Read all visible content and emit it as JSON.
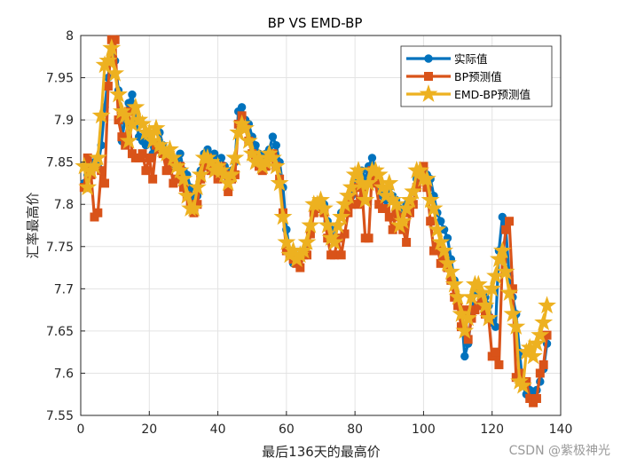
{
  "chart_data": {
    "type": "line",
    "title": "BP VS EMD-BP",
    "xlabel": "最后136天的最高价",
    "ylabel": "汇率最高价",
    "xlim": [
      0,
      140
    ],
    "ylim": [
      7.55,
      8.0
    ],
    "xticks": [
      0,
      20,
      40,
      60,
      80,
      100,
      120,
      140
    ],
    "yticks": [
      7.55,
      7.6,
      7.65,
      7.7,
      7.75,
      7.8,
      7.85,
      7.9,
      7.95,
      8.0
    ],
    "ytick_labels": [
      "7.55",
      "7.6",
      "7.65",
      "7.7",
      "7.75",
      "7.8",
      "7.85",
      "7.9",
      "7.95",
      "8"
    ],
    "grid": true,
    "legend_position": "top-right",
    "series": [
      {
        "name": "实际值",
        "color": "#0072BD",
        "marker": "circle",
        "values": [
          7.825,
          7.835,
          7.845,
          7.85,
          7.845,
          7.87,
          7.915,
          7.95,
          7.985,
          7.97,
          7.935,
          7.875,
          7.905,
          7.92,
          7.93,
          7.9,
          7.88,
          7.875,
          7.87,
          7.88,
          7.86,
          7.865,
          7.885,
          7.87,
          7.855,
          7.86,
          7.845,
          7.85,
          7.86,
          7.84,
          7.835,
          7.82,
          7.8,
          7.81,
          7.84,
          7.86,
          7.865,
          7.855,
          7.86,
          7.85,
          7.855,
          7.845,
          7.83,
          7.84,
          7.85,
          7.91,
          7.915,
          7.9,
          7.895,
          7.88,
          7.87,
          7.86,
          7.855,
          7.86,
          7.865,
          7.88,
          7.87,
          7.85,
          7.82,
          7.77,
          7.745,
          7.73,
          7.735,
          7.74,
          7.745,
          7.75,
          7.77,
          7.795,
          7.8,
          7.805,
          7.8,
          7.78,
          7.77,
          7.76,
          7.775,
          7.79,
          7.795,
          7.8,
          7.81,
          7.83,
          7.835,
          7.84,
          7.83,
          7.845,
          7.855,
          7.84,
          7.82,
          7.81,
          7.805,
          7.82,
          7.81,
          7.805,
          7.795,
          7.79,
          7.8,
          7.805,
          7.815,
          7.83,
          7.835,
          7.84,
          7.835,
          7.83,
          7.81,
          7.79,
          7.78,
          7.77,
          7.76,
          7.735,
          7.71,
          7.69,
          7.675,
          7.62,
          7.635,
          7.67,
          7.695,
          7.7,
          7.695,
          7.69,
          7.68,
          7.66,
          7.655,
          7.745,
          7.785,
          7.77,
          7.715,
          7.69,
          7.67,
          7.625,
          7.585,
          7.575,
          7.58,
          7.575,
          7.58,
          7.59,
          7.605,
          7.635
        ],
        "x": [
          1,
          2,
          3,
          4,
          5,
          6,
          7,
          8,
          9,
          10,
          11,
          12,
          13,
          14,
          15,
          16,
          17,
          18,
          19,
          20,
          21,
          22,
          23,
          24,
          25,
          26,
          27,
          28,
          29,
          30,
          31,
          32,
          33,
          34,
          35,
          36,
          37,
          38,
          39,
          40,
          41,
          42,
          43,
          44,
          45,
          46,
          47,
          48,
          49,
          50,
          51,
          52,
          53,
          54,
          55,
          56,
          57,
          58,
          59,
          60,
          61,
          62,
          63,
          64,
          65,
          66,
          67,
          68,
          69,
          70,
          71,
          72,
          73,
          74,
          75,
          76,
          77,
          78,
          79,
          80,
          81,
          82,
          83,
          84,
          85,
          86,
          87,
          88,
          89,
          90,
          91,
          92,
          93,
          94,
          95,
          96,
          97,
          98,
          99,
          100,
          101,
          102,
          103,
          104,
          105,
          106,
          107,
          108,
          109,
          110,
          111,
          112,
          113,
          114,
          115,
          116,
          117,
          118,
          119,
          120,
          121,
          122,
          123,
          124,
          125,
          126,
          127,
          128,
          129,
          130,
          131,
          132,
          133,
          134,
          135,
          136
        ]
      },
      {
        "name": "BP预测值",
        "color": "#D95319",
        "marker": "square",
        "values": [
          7.82,
          7.855,
          7.835,
          7.785,
          7.79,
          7.84,
          7.825,
          7.94,
          7.995,
          7.995,
          7.9,
          7.88,
          7.87,
          7.91,
          7.86,
          7.855,
          7.855,
          7.86,
          7.84,
          7.855,
          7.83,
          7.87,
          7.865,
          7.86,
          7.84,
          7.85,
          7.825,
          7.83,
          7.845,
          7.82,
          7.81,
          7.8,
          7.79,
          7.8,
          7.83,
          7.845,
          7.855,
          7.84,
          7.845,
          7.83,
          7.845,
          7.835,
          7.815,
          7.83,
          7.835,
          7.895,
          7.905,
          7.89,
          7.875,
          7.86,
          7.855,
          7.845,
          7.84,
          7.845,
          7.855,
          7.86,
          7.845,
          7.83,
          7.79,
          7.745,
          7.74,
          7.735,
          7.73,
          7.725,
          7.74,
          7.74,
          7.765,
          7.79,
          7.795,
          7.795,
          7.79,
          7.76,
          7.74,
          7.74,
          7.76,
          7.74,
          7.765,
          7.79,
          7.8,
          7.82,
          7.8,
          7.82,
          7.76,
          7.76,
          7.84,
          7.825,
          7.8,
          7.795,
          7.795,
          7.785,
          7.77,
          7.79,
          7.785,
          7.77,
          7.755,
          7.79,
          7.8,
          7.82,
          7.84,
          7.845,
          7.82,
          7.78,
          7.745,
          7.75,
          7.73,
          7.74,
          7.725,
          7.71,
          7.69,
          7.68,
          7.655,
          7.675,
          7.64,
          7.665,
          7.675,
          7.68,
          7.685,
          7.67,
          7.665,
          7.62,
          7.625,
          7.61,
          7.735,
          7.77,
          7.78,
          7.7,
          7.595,
          7.6,
          7.59,
          7.59,
          7.57,
          7.565,
          7.57,
          7.6,
          7.61,
          7.645
        ]
      },
      {
        "name": "EMD-BP预测值",
        "color": "#EDB120",
        "marker": "star",
        "values": [
          7.845,
          7.82,
          7.84,
          7.845,
          7.855,
          7.905,
          7.965,
          7.97,
          7.985,
          7.955,
          7.93,
          7.91,
          7.905,
          7.875,
          7.895,
          7.915,
          7.9,
          7.895,
          7.885,
          7.885,
          7.875,
          7.89,
          7.87,
          7.865,
          7.86,
          7.865,
          7.855,
          7.845,
          7.84,
          7.83,
          7.81,
          7.795,
          7.795,
          7.82,
          7.835,
          7.855,
          7.855,
          7.85,
          7.84,
          7.845,
          7.84,
          7.835,
          7.825,
          7.835,
          7.855,
          7.885,
          7.895,
          7.89,
          7.875,
          7.86,
          7.85,
          7.855,
          7.845,
          7.85,
          7.86,
          7.855,
          7.845,
          7.825,
          7.785,
          7.755,
          7.74,
          7.745,
          7.735,
          7.74,
          7.745,
          7.755,
          7.775,
          7.8,
          7.8,
          7.805,
          7.795,
          7.775,
          7.76,
          7.755,
          7.775,
          7.785,
          7.8,
          7.81,
          7.82,
          7.835,
          7.84,
          7.825,
          7.805,
          7.825,
          7.84,
          7.84,
          7.835,
          7.82,
          7.81,
          7.825,
          7.805,
          7.8,
          7.775,
          7.78,
          7.795,
          7.805,
          7.815,
          7.84,
          7.84,
          7.83,
          7.83,
          7.805,
          7.795,
          7.77,
          7.755,
          7.745,
          7.73,
          7.72,
          7.705,
          7.69,
          7.67,
          7.65,
          7.665,
          7.69,
          7.705,
          7.705,
          7.695,
          7.68,
          7.665,
          7.7,
          7.715,
          7.735,
          7.745,
          7.72,
          7.695,
          7.67,
          7.655,
          7.59,
          7.585,
          7.625,
          7.63,
          7.62,
          7.635,
          7.645,
          7.66,
          7.68
        ]
      }
    ]
  },
  "watermark": "CSDN @紫极神光"
}
